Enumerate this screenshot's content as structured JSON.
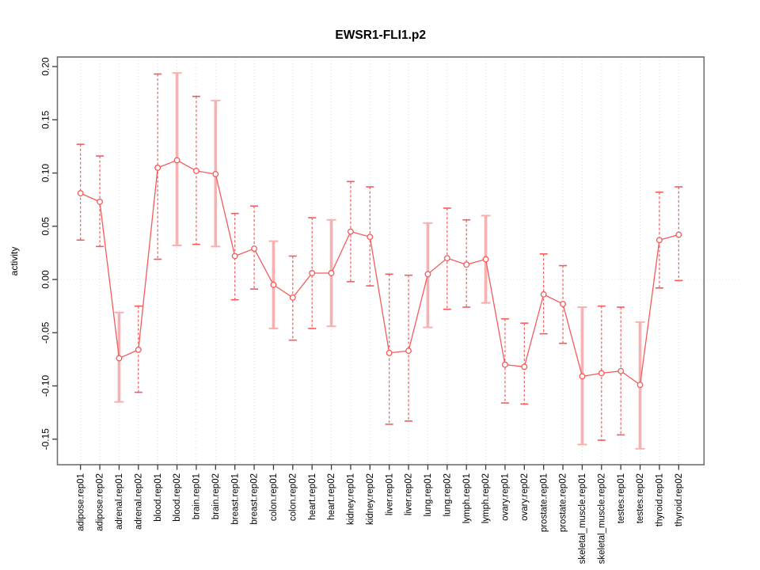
{
  "chart_data": {
    "type": "line",
    "title": "EWSR1-FLI1.p2",
    "xlabel": "",
    "ylabel": "activity",
    "ylim": [
      -0.174,
      0.209
    ],
    "yticks": [
      "0.20",
      "0.15",
      "0.10",
      "0.05",
      "0.00",
      "-0.05",
      "-0.10",
      "-0.15"
    ],
    "ytick_values": [
      0.2,
      0.15,
      0.1,
      0.05,
      0.0,
      -0.05,
      -0.1,
      -0.15
    ],
    "grid": "vertical dotted gridline per category, dotted horizontal line at zero, no legend",
    "marker": "open-circle",
    "categories": [
      "adipose.rep01",
      "adipose.rep02",
      "adrenal.rep01",
      "adrenal.rep02",
      "blood.rep01",
      "blood.rep02",
      "brain.rep01",
      "brain.rep02",
      "breast.rep01",
      "breast.rep02",
      "colon.rep01",
      "colon.rep02",
      "heart.rep01",
      "heart.rep02",
      "kidney.rep01",
      "kidney.rep02",
      "liver.rep01",
      "liver.rep02",
      "lung.rep01",
      "lung.rep02",
      "lymph.rep01",
      "lymph.rep02",
      "ovary.rep01",
      "ovary.rep02",
      "prostate.rep01",
      "prostate.rep02",
      "skeletal_muscle.rep01",
      "skeletal_muscle.rep02",
      "testes.rep01",
      "testes.rep02",
      "thyroid.rep01",
      "thyroid.rep02"
    ],
    "series": [
      {
        "name": "activity",
        "values": [
          0.081,
          0.073,
          -0.074,
          -0.066,
          0.105,
          0.112,
          0.102,
          0.099,
          0.022,
          0.029,
          -0.005,
          -0.017,
          0.006,
          0.006,
          0.045,
          0.04,
          -0.069,
          -0.067,
          0.005,
          0.02,
          0.014,
          0.019,
          -0.08,
          -0.082,
          -0.014,
          -0.023,
          -0.091,
          -0.088,
          -0.086,
          -0.099,
          0.037,
          0.042
        ],
        "err_lo": [
          0.037,
          0.031,
          -0.115,
          -0.106,
          0.019,
          0.032,
          0.033,
          0.031,
          -0.019,
          -0.009,
          -0.046,
          -0.057,
          -0.046,
          -0.044,
          -0.002,
          -0.006,
          -0.136,
          -0.133,
          -0.045,
          -0.028,
          -0.026,
          -0.022,
          -0.116,
          -0.117,
          -0.051,
          -0.06,
          -0.155,
          -0.151,
          -0.146,
          -0.159,
          -0.008,
          -0.001
        ],
        "err_hi": [
          0.127,
          0.116,
          -0.031,
          -0.025,
          0.193,
          0.194,
          0.172,
          0.168,
          0.062,
          0.069,
          0.036,
          0.022,
          0.058,
          0.056,
          0.092,
          0.087,
          0.005,
          0.004,
          0.053,
          0.067,
          0.056,
          0.06,
          -0.037,
          -0.041,
          0.024,
          0.013,
          -0.026,
          -0.025,
          -0.026,
          -0.04,
          0.082,
          0.087
        ],
        "bar_styles": [
          "dark",
          "dark",
          "light",
          "dark",
          "dark",
          "light",
          "dark",
          "light",
          "dark",
          "dark",
          "light",
          "dark",
          "dark",
          "light",
          "dark",
          "dark",
          "dark",
          "dark",
          "light",
          "dark",
          "dark",
          "light",
          "dark",
          "dark",
          "dark",
          "dark",
          "light",
          "dark",
          "dark",
          "light",
          "dark",
          "dark"
        ]
      }
    ],
    "colors": {
      "line": "#f45b5b",
      "light_bar": "#f8b0b0",
      "grid": "#dcdcdc",
      "axis": "#6f6f6f",
      "tick": "#3a3a3a",
      "text": "#000000",
      "background": "#ffffff"
    }
  }
}
